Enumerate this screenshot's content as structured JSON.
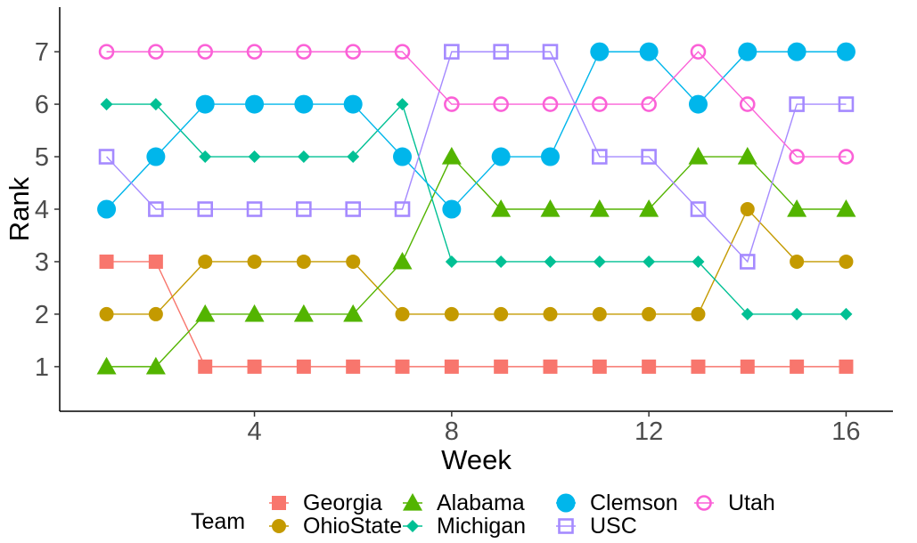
{
  "chart_data": {
    "type": "line",
    "xlabel": "Week",
    "ylabel": "Rank",
    "xlim": [
      0.05,
      16.95
    ],
    "ylim": [
      0.15,
      7.85
    ],
    "x_ticks": [
      4,
      8,
      12,
      16
    ],
    "y_ticks": [
      1,
      2,
      3,
      4,
      5,
      6,
      7
    ],
    "x": [
      1,
      2,
      3,
      4,
      5,
      6,
      7,
      8,
      9,
      10,
      11,
      12,
      13,
      14,
      15,
      16
    ],
    "grid": false,
    "legend": {
      "title": "Team",
      "position": "bottom",
      "items": [
        "Georgia",
        "OhioState",
        "Alabama",
        "Michigan",
        "Clemson",
        "USC",
        "Utah"
      ]
    },
    "series": [
      {
        "name": "Georgia",
        "color": "#F8766D",
        "shape": "square-filled",
        "values": [
          3,
          3,
          1,
          1,
          1,
          1,
          1,
          1,
          1,
          1,
          1,
          1,
          1,
          1,
          1,
          1
        ]
      },
      {
        "name": "OhioState",
        "color": "#C49A00",
        "shape": "circle-filled",
        "values": [
          2,
          2,
          3,
          3,
          3,
          3,
          2,
          2,
          2,
          2,
          2,
          2,
          2,
          4,
          3,
          3
        ]
      },
      {
        "name": "Alabama",
        "color": "#53B400",
        "shape": "triangle-filled",
        "values": [
          1,
          1,
          2,
          2,
          2,
          2,
          3,
          5,
          4,
          4,
          4,
          4,
          5,
          5,
          4,
          4
        ]
      },
      {
        "name": "Michigan",
        "color": "#00C094",
        "shape": "diamond-filled",
        "values": [
          6,
          6,
          5,
          5,
          5,
          5,
          6,
          3,
          3,
          3,
          3,
          3,
          3,
          2,
          2,
          2
        ]
      },
      {
        "name": "Clemson",
        "color": "#00B6EB",
        "shape": "circle-large",
        "values": [
          4,
          5,
          6,
          6,
          6,
          6,
          5,
          4,
          5,
          5,
          7,
          7,
          6,
          7,
          7,
          7
        ]
      },
      {
        "name": "USC",
        "color": "#A58AFF",
        "shape": "square-open",
        "values": [
          5,
          4,
          4,
          4,
          4,
          4,
          4,
          7,
          7,
          7,
          5,
          5,
          4,
          3,
          6,
          6
        ]
      },
      {
        "name": "Utah",
        "color": "#FB61D7",
        "shape": "circle-open",
        "values": [
          7,
          7,
          7,
          7,
          7,
          7,
          7,
          6,
          6,
          6,
          6,
          6,
          7,
          6,
          5,
          5
        ]
      }
    ]
  }
}
